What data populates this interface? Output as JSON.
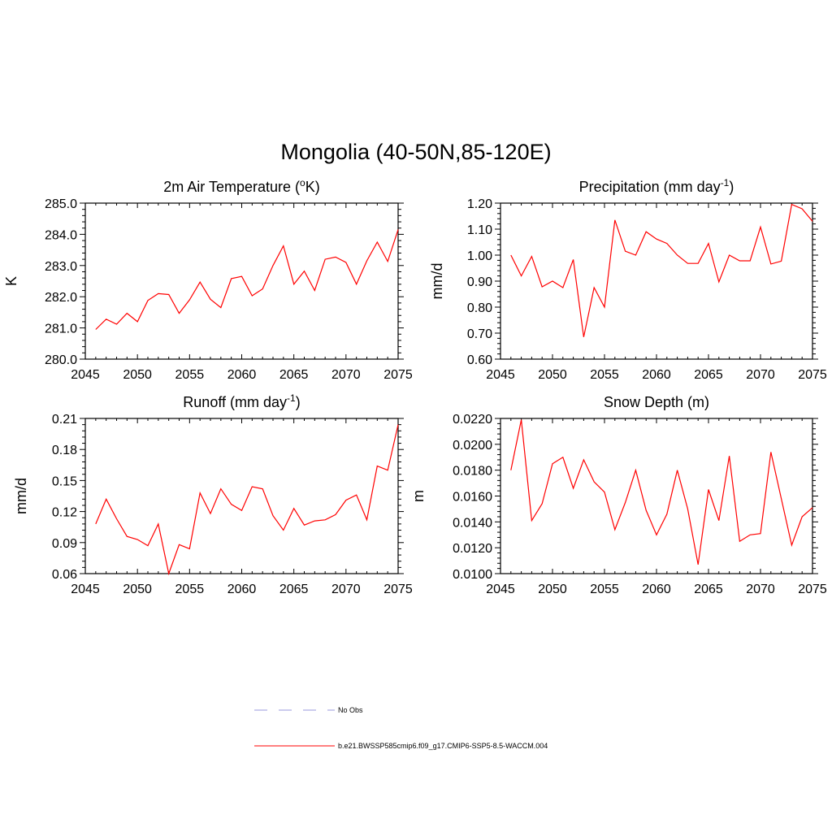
{
  "title": "Mongolia (40-50N,85-120E)",
  "legend": [
    {
      "label": "No Obs",
      "color": "#9999dd",
      "style": "dashed"
    },
    {
      "label": "b.e21.BWSSP585cmip6.f09_g17.CMIP6-SSP5-8.5-WACCM.004",
      "color": "#ff0000",
      "style": "solid"
    }
  ],
  "chart_data": [
    {
      "type": "line",
      "title": "2m Air Temperature (°K)",
      "title_parts": [
        "2m Air Temperature (",
        "o",
        "K)"
      ],
      "ylabel": "K",
      "xlim": [
        2045,
        2075
      ],
      "xticks": [
        2045,
        2050,
        2055,
        2060,
        2065,
        2070,
        2075
      ],
      "xtick_labels": [
        "2045",
        "2050",
        "2055",
        "2060",
        "2065",
        "2070",
        "2075"
      ],
      "ylim": [
        280.0,
        285.0
      ],
      "yticks": [
        280.0,
        281.0,
        282.0,
        283.0,
        284.0,
        285.0
      ],
      "ytick_labels": [
        "280.0",
        "281.0",
        "282.0",
        "283.0",
        "284.0",
        "285.0"
      ],
      "x": [
        2046,
        2047,
        2048,
        2049,
        2050,
        2051,
        2052,
        2053,
        2054,
        2055,
        2056,
        2057,
        2058,
        2059,
        2060,
        2061,
        2062,
        2063,
        2064,
        2065,
        2066,
        2067,
        2068,
        2069,
        2070,
        2071,
        2072,
        2073,
        2074,
        2075
      ],
      "series": [
        {
          "name": "b.e21.BWSSP585cmip6.f09_g17.CMIP6-SSP5-8.5-WACCM.004",
          "color": "#ff0000",
          "values": [
            280.95,
            281.28,
            281.12,
            281.47,
            281.2,
            281.88,
            282.1,
            282.07,
            281.47,
            281.9,
            282.47,
            281.92,
            281.65,
            282.58,
            282.65,
            282.03,
            282.25,
            283.0,
            283.63,
            282.4,
            282.82,
            282.2,
            283.2,
            283.27,
            283.1,
            282.4,
            283.15,
            283.75,
            283.13,
            284.15
          ]
        }
      ]
    },
    {
      "type": "line",
      "title": "Precipitation (mm day-1)",
      "title_parts": [
        "Precipitation (mm day",
        "-1",
        ")"
      ],
      "ylabel": "mm/d",
      "xlim": [
        2045,
        2075
      ],
      "xticks": [
        2045,
        2050,
        2055,
        2060,
        2065,
        2070,
        2075
      ],
      "xtick_labels": [
        "2045",
        "2050",
        "2055",
        "2060",
        "2065",
        "2070",
        "2075"
      ],
      "ylim": [
        0.6,
        1.2
      ],
      "yticks": [
        0.6,
        0.7,
        0.8,
        0.9,
        1.0,
        1.1,
        1.2
      ],
      "ytick_labels": [
        "0.60",
        "0.70",
        "0.80",
        "0.90",
        "1.00",
        "1.10",
        "1.20"
      ],
      "x": [
        2046,
        2047,
        2048,
        2049,
        2050,
        2051,
        2052,
        2053,
        2054,
        2055,
        2056,
        2057,
        2058,
        2059,
        2060,
        2061,
        2062,
        2063,
        2064,
        2065,
        2066,
        2067,
        2068,
        2069,
        2070,
        2071,
        2072,
        2073,
        2074,
        2075
      ],
      "series": [
        {
          "name": "b.e21.BWSSP585cmip6.f09_g17.CMIP6-SSP5-8.5-WACCM.004",
          "color": "#ff0000",
          "values": [
            1.0,
            0.92,
            0.995,
            0.878,
            0.9,
            0.875,
            0.983,
            0.685,
            0.875,
            0.8,
            1.135,
            1.015,
            1.0,
            1.09,
            1.062,
            1.045,
            1.0,
            0.968,
            0.968,
            1.045,
            0.897,
            1.0,
            0.978,
            0.978,
            1.108,
            0.966,
            0.977,
            1.195,
            1.178,
            1.13
          ]
        }
      ]
    },
    {
      "type": "line",
      "title": "Runoff (mm day-1)",
      "title_parts": [
        "Runoff (mm day",
        "-1",
        ")"
      ],
      "ylabel": "mm/d",
      "xlim": [
        2045,
        2075
      ],
      "xticks": [
        2045,
        2050,
        2055,
        2060,
        2065,
        2070,
        2075
      ],
      "xtick_labels": [
        "2045",
        "2050",
        "2055",
        "2060",
        "2065",
        "2070",
        "2075"
      ],
      "ylim": [
        0.06,
        0.21
      ],
      "yticks": [
        0.06,
        0.09,
        0.12,
        0.15,
        0.18,
        0.21
      ],
      "ytick_labels": [
        "0.06",
        "0.09",
        "0.12",
        "0.15",
        "0.18",
        "0.21"
      ],
      "x": [
        2046,
        2047,
        2048,
        2049,
        2050,
        2051,
        2052,
        2053,
        2054,
        2055,
        2056,
        2057,
        2058,
        2059,
        2060,
        2061,
        2062,
        2063,
        2064,
        2065,
        2066,
        2067,
        2068,
        2069,
        2070,
        2071,
        2072,
        2073,
        2074,
        2075
      ],
      "series": [
        {
          "name": "b.e21.BWSSP585cmip6.f09_g17.CMIP6-SSP5-8.5-WACCM.004",
          "color": "#ff0000",
          "values": [
            0.108,
            0.132,
            0.113,
            0.096,
            0.093,
            0.087,
            0.108,
            0.06,
            0.088,
            0.084,
            0.138,
            0.118,
            0.142,
            0.127,
            0.121,
            0.144,
            0.142,
            0.116,
            0.102,
            0.123,
            0.107,
            0.111,
            0.112,
            0.117,
            0.131,
            0.136,
            0.112,
            0.164,
            0.16,
            0.204
          ]
        }
      ]
    },
    {
      "type": "line",
      "title": "Snow Depth (m)",
      "title_parts": [
        "Snow Depth (m)",
        "",
        ""
      ],
      "ylabel": "m",
      "xlim": [
        2045,
        2075
      ],
      "xticks": [
        2045,
        2050,
        2055,
        2060,
        2065,
        2070,
        2075
      ],
      "xtick_labels": [
        "2045",
        "2050",
        "2055",
        "2060",
        "2065",
        "2070",
        "2075"
      ],
      "ylim": [
        0.01,
        0.022
      ],
      "yticks": [
        0.01,
        0.012,
        0.014,
        0.016,
        0.018,
        0.02,
        0.022
      ],
      "ytick_labels": [
        "0.0100",
        "0.0120",
        "0.0140",
        "0.0160",
        "0.0180",
        "0.0200",
        "0.0220"
      ],
      "x": [
        2046,
        2047,
        2048,
        2049,
        2050,
        2051,
        2052,
        2053,
        2054,
        2055,
        2056,
        2057,
        2058,
        2059,
        2060,
        2061,
        2062,
        2063,
        2064,
        2065,
        2066,
        2067,
        2068,
        2069,
        2070,
        2071,
        2072,
        2073,
        2074,
        2075
      ],
      "series": [
        {
          "name": "b.e21.BWSSP585cmip6.f09_g17.CMIP6-SSP5-8.5-WACCM.004",
          "color": "#ff0000",
          "values": [
            0.018,
            0.0219,
            0.0141,
            0.0154,
            0.0185,
            0.019,
            0.0166,
            0.0188,
            0.0171,
            0.0163,
            0.0134,
            0.0155,
            0.018,
            0.0149,
            0.013,
            0.0146,
            0.018,
            0.015,
            0.0107,
            0.0165,
            0.0141,
            0.0191,
            0.0125,
            0.013,
            0.0131,
            0.0194,
            0.0158,
            0.0122,
            0.0144,
            0.0151
          ]
        }
      ]
    }
  ]
}
